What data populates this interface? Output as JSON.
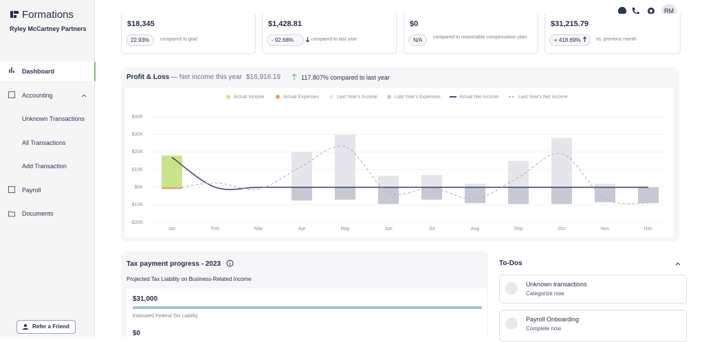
{
  "sidebar": {
    "brand": "Formations",
    "company": "Ryley McCartney Partners",
    "nav": [
      "Dashboard",
      "Accounting",
      "Unknown Transactions",
      "All Transactions",
      "Add Transaction",
      "Payroll",
      "Documents"
    ],
    "refer": "Refer a Friend"
  },
  "header": {
    "avatar": "RM"
  },
  "cards": [
    {
      "amount": "$18,345",
      "badge": "22.93%",
      "note": "compared to goal"
    },
    {
      "amount": "$1,428.81",
      "badge": "- 92.68%",
      "note": "compared to last year"
    },
    {
      "amount": "$0",
      "badge": "N/A",
      "note": "compared to reasonable compensation plan"
    },
    {
      "amount": "$31,215.79",
      "badge": "+ 418.69%",
      "note": "vs. previous month"
    }
  ],
  "pnl": {
    "title": "Profit & Loss",
    "subtitle": "— Net income this year",
    "net": "$16,916.19",
    "change": "117.807% compared to last year"
  },
  "chart_data": {
    "type": "bar",
    "categories": [
      "Jan",
      "Feb",
      "Mar",
      "Apr",
      "May",
      "Jun",
      "Jul",
      "Aug",
      "Sep",
      "Oct",
      "Nov",
      "Dec"
    ],
    "series": [
      {
        "name": "Actual Income",
        "color": "#c8e38a",
        "style": "bar",
        "values": [
          18000,
          null,
          null,
          null,
          null,
          null,
          null,
          null,
          null,
          null,
          null,
          null
        ]
      },
      {
        "name": "Actual Expenses",
        "color": "#f29a5c",
        "style": "bar",
        "values": [
          -1000,
          null,
          null,
          null,
          null,
          null,
          null,
          null,
          null,
          null,
          null,
          null
        ]
      },
      {
        "name": "Last Year's Income",
        "color": "#e5e5eb",
        "style": "bar",
        "values": [
          null,
          null,
          null,
          20000,
          30000,
          6500,
          7000,
          2000,
          15000,
          28000,
          2000,
          0
        ]
      },
      {
        "name": "Last Year's Expenses",
        "color": "#c6c8d4",
        "style": "bar",
        "values": [
          null,
          null,
          null,
          -7500,
          -7000,
          -9500,
          -7000,
          -9000,
          -9500,
          -9500,
          -8500,
          -9000
        ]
      },
      {
        "name": "Actual Net Income",
        "color": "#3e4a6d",
        "style": "line",
        "values": [
          17000,
          0,
          0,
          0,
          0,
          0,
          0,
          0,
          0,
          0,
          0,
          0
        ]
      },
      {
        "name": "Last Year's Net Income",
        "color": "#b9b9c2",
        "style": "dashed",
        "values": [
          -1000,
          2500,
          -1000,
          12000,
          23000,
          -3000,
          -500,
          -6500,
          5500,
          19000,
          -6500,
          -9000
        ]
      }
    ],
    "ylim": [
      -20000,
      40000
    ],
    "yticks": [
      {
        "value": -20000,
        "label": "-$20K"
      },
      {
        "value": -10000,
        "label": "-$10K"
      },
      {
        "value": 0,
        "label": "$0K"
      },
      {
        "value": 10000,
        "label": "$10K"
      },
      {
        "value": 20000,
        "label": "$20K"
      },
      {
        "value": 30000,
        "label": "$30K"
      },
      {
        "value": 40000,
        "label": "$40K"
      }
    ],
    "grid": true
  },
  "tax": {
    "title": "Tax payment progress - 2023",
    "subtitle": "Projected Tax Liability on Business-Related Income",
    "amount": "$31,000",
    "label": "Estimated Federal Tax Liability",
    "amount2": "$0"
  },
  "todos": {
    "title": "To-Dos",
    "items": [
      {
        "title": "Unknown transactions",
        "action": "Categorize now"
      },
      {
        "title": "Payroll Onboarding",
        "action": "Complete now"
      }
    ]
  }
}
